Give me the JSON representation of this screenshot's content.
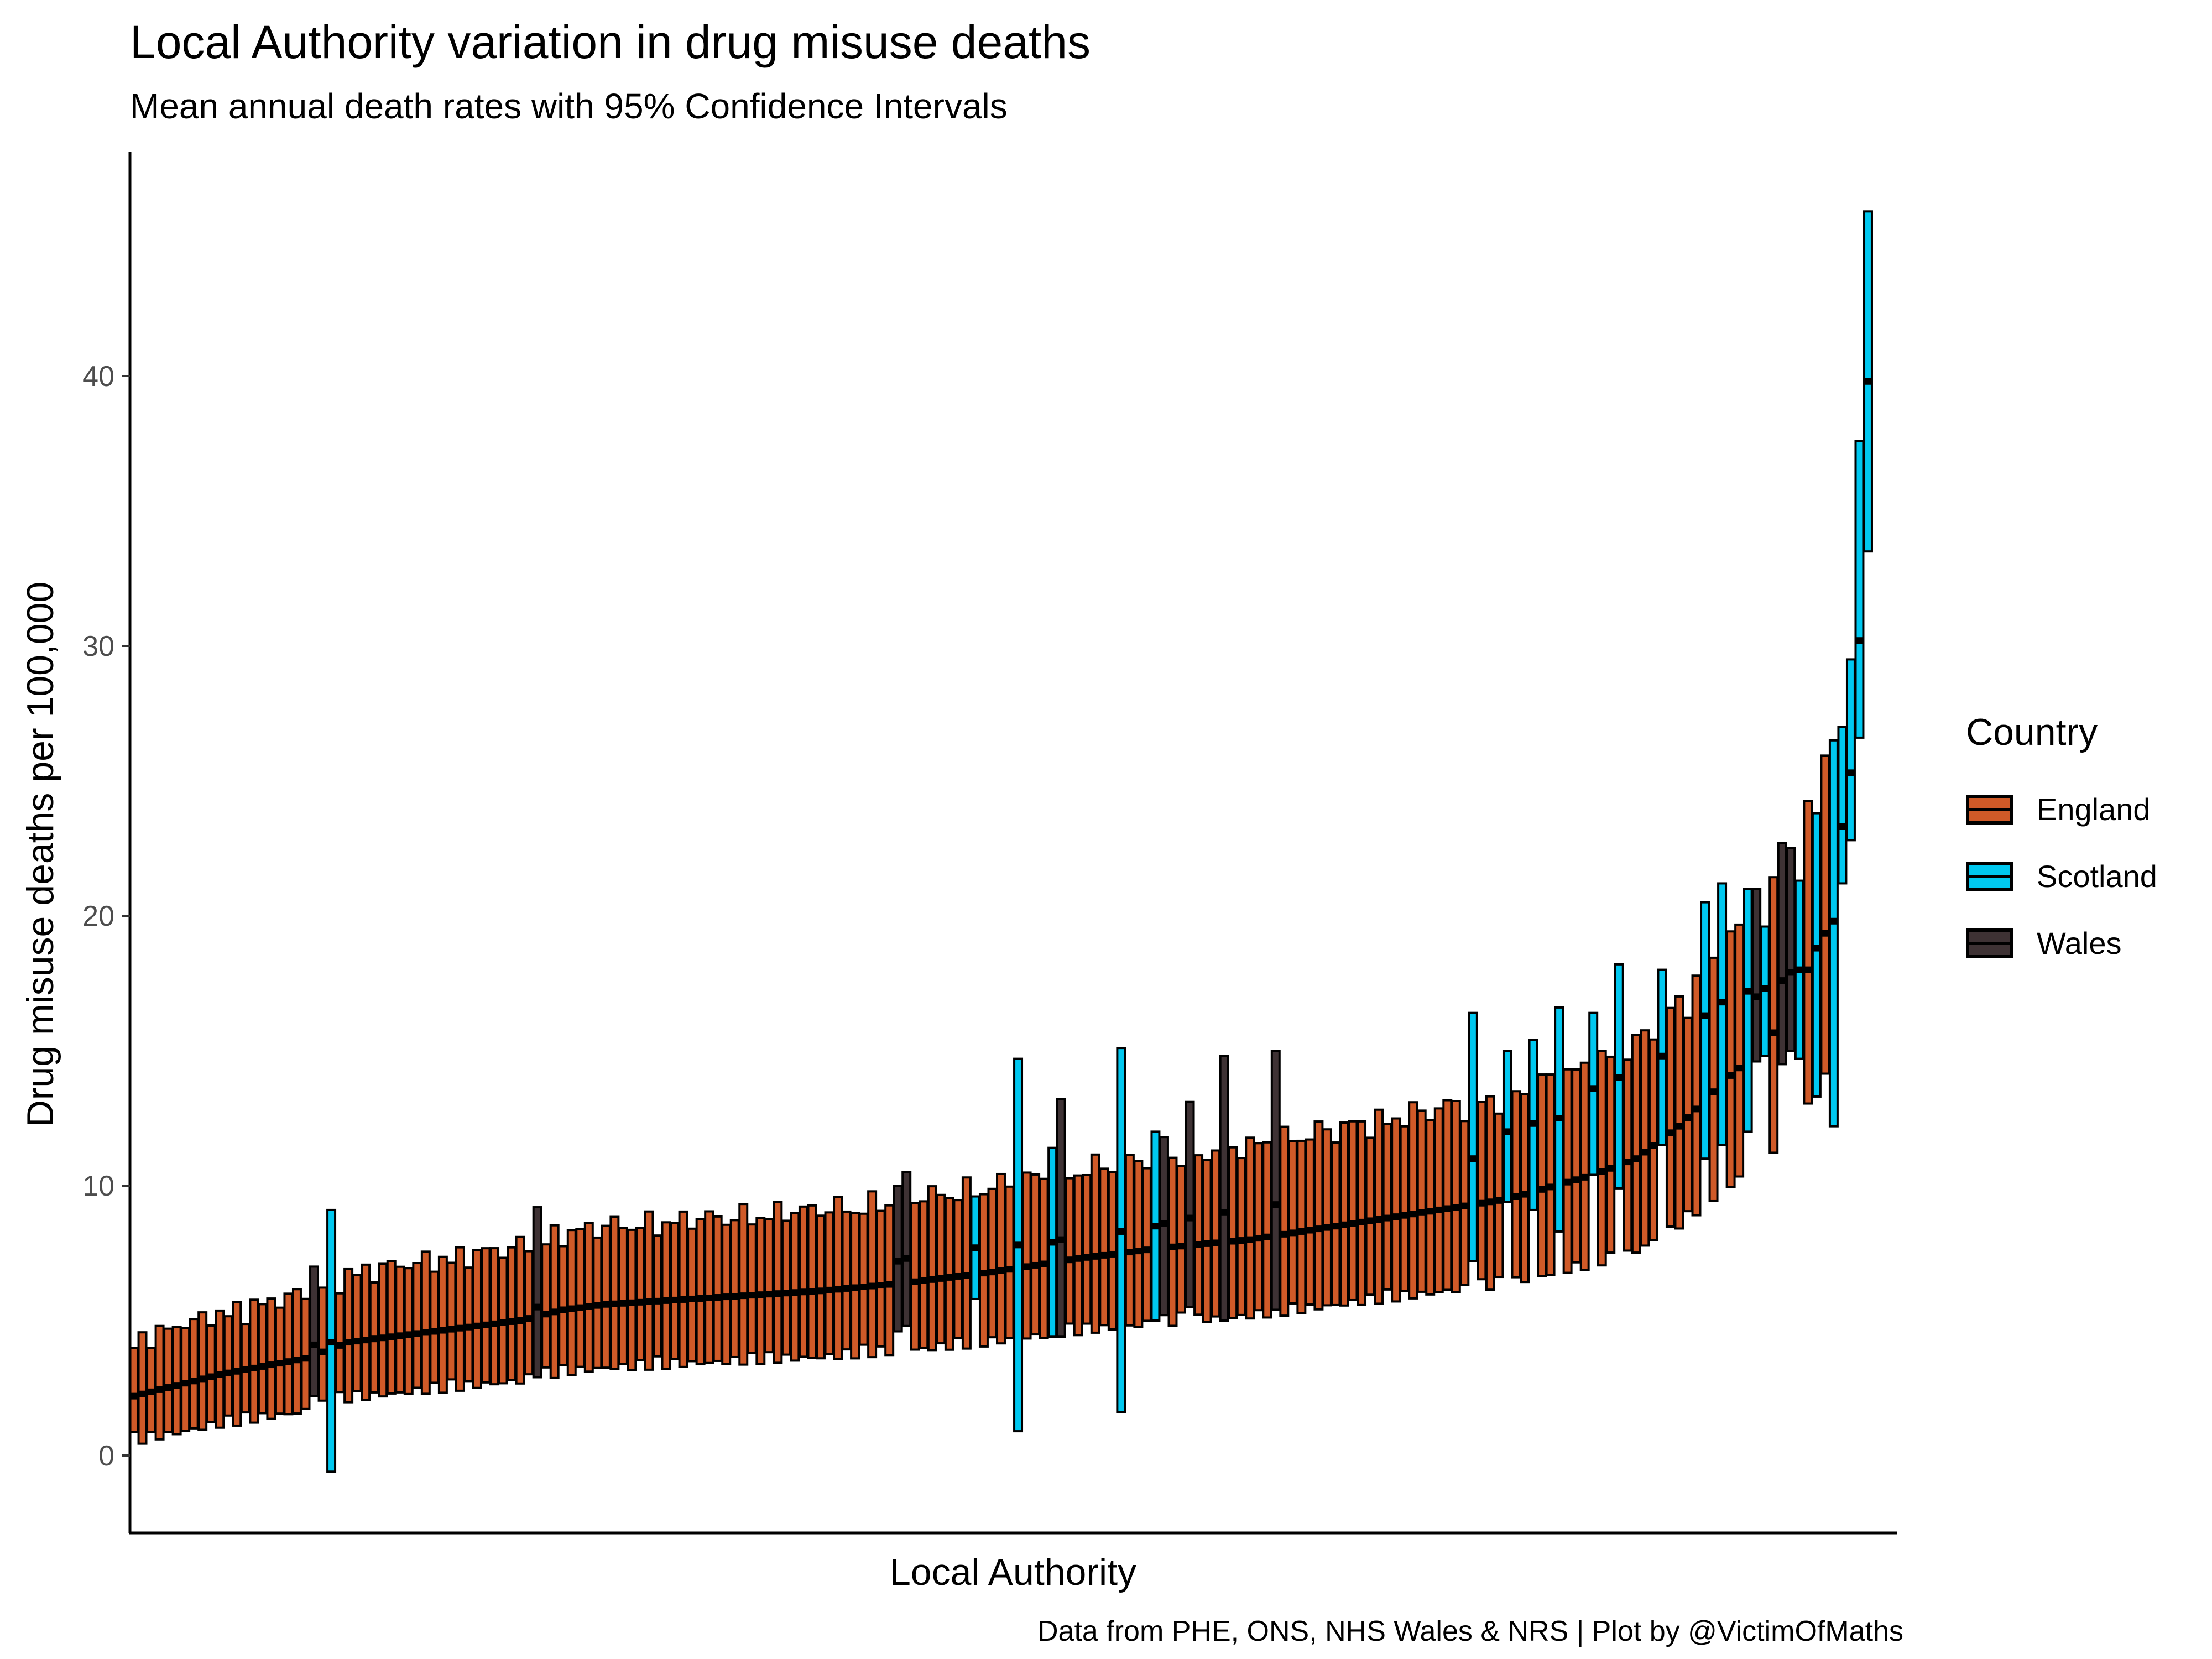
{
  "chart_data": {
    "type": "crossbar",
    "title": "Local Authority variation in drug misuse deaths",
    "subtitle": "Mean annual death rates with 95% Confidence Intervals",
    "xlabel": "Local Authority",
    "ylabel": "Drug misuse deaths per 100,000",
    "caption": "Data from PHE, ONS, NHS Wales & NRS | Plot by @VictimOfMaths",
    "ylim": [
      -2.8,
      48.5
    ],
    "yticks": [
      0,
      10,
      20,
      30,
      40
    ],
    "grid": false,
    "legend": {
      "title": "Country",
      "position": "right",
      "entries": [
        {
          "name": "England",
          "color": "#D05A28"
        },
        {
          "name": "Scotland",
          "color": "#00C8F0"
        },
        {
          "name": "Wales",
          "color": "#3E3234"
        }
      ]
    },
    "n_authorities": 203,
    "mean_curve": [
      [
        0,
        2.2
      ],
      [
        10,
        3.0
      ],
      [
        20,
        3.6
      ],
      [
        25,
        4.2
      ],
      [
        35,
        4.6
      ],
      [
        45,
        5.0
      ],
      [
        50,
        5.4
      ],
      [
        55,
        5.6
      ],
      [
        70,
        5.9
      ],
      [
        80,
        6.1
      ],
      [
        90,
        6.4
      ],
      [
        100,
        6.8
      ],
      [
        110,
        7.3
      ],
      [
        120,
        7.7
      ],
      [
        130,
        8.0
      ],
      [
        140,
        8.5
      ],
      [
        150,
        9.0
      ],
      [
        160,
        9.5
      ],
      [
        170,
        10.4
      ],
      [
        175,
        11.0
      ],
      [
        180,
        12.2
      ],
      [
        185,
        13.8
      ],
      [
        190,
        15.2
      ],
      [
        193,
        16.6
      ],
      [
        196,
        18.7
      ],
      [
        198,
        20.0
      ],
      [
        199,
        23.3
      ],
      [
        200,
        25.3
      ],
      [
        201,
        30.2
      ],
      [
        202,
        39.8
      ]
    ],
    "scotland_points": [
      {
        "i": 23,
        "mean": 4.2,
        "lower": -0.6,
        "upper": 9.1
      },
      {
        "i": 98,
        "mean": 7.7,
        "lower": 5.8,
        "upper": 9.6
      },
      {
        "i": 103,
        "mean": 7.8,
        "lower": 0.9,
        "upper": 14.7
      },
      {
        "i": 107,
        "mean": 7.9,
        "lower": 4.4,
        "upper": 11.4
      },
      {
        "i": 115,
        "mean": 8.3,
        "lower": 1.6,
        "upper": 15.1
      },
      {
        "i": 119,
        "mean": 8.5,
        "lower": 5.0,
        "upper": 12.0
      },
      {
        "i": 156,
        "mean": 11.0,
        "lower": 7.2,
        "upper": 16.4
      },
      {
        "i": 160,
        "mean": 12.0,
        "lower": 9.4,
        "upper": 15.0
      },
      {
        "i": 163,
        "mean": 12.3,
        "lower": 9.1,
        "upper": 15.4
      },
      {
        "i": 166,
        "mean": 12.5,
        "lower": 8.3,
        "upper": 16.6
      },
      {
        "i": 170,
        "mean": 13.6,
        "lower": 10.4,
        "upper": 16.4
      },
      {
        "i": 173,
        "mean": 14.0,
        "lower": 9.9,
        "upper": 18.2
      },
      {
        "i": 178,
        "mean": 14.8,
        "lower": 11.5,
        "upper": 18.0
      },
      {
        "i": 183,
        "mean": 16.3,
        "lower": 11.0,
        "upper": 20.5
      },
      {
        "i": 185,
        "mean": 16.8,
        "lower": 11.5,
        "upper": 21.2
      },
      {
        "i": 188,
        "mean": 17.2,
        "lower": 12.0,
        "upper": 21.0
      },
      {
        "i": 190,
        "mean": 17.3,
        "lower": 14.8,
        "upper": 19.6
      },
      {
        "i": 194,
        "mean": 18.0,
        "lower": 14.7,
        "upper": 21.3
      },
      {
        "i": 196,
        "mean": 18.8,
        "lower": 13.3,
        "upper": 23.8
      },
      {
        "i": 198,
        "mean": 19.8,
        "lower": 12.2,
        "upper": 26.5
      },
      {
        "i": 199,
        "mean": 23.3,
        "lower": 21.2,
        "upper": 27.0
      },
      {
        "i": 200,
        "mean": 25.3,
        "lower": 22.8,
        "upper": 29.5
      },
      {
        "i": 201,
        "mean": 30.2,
        "lower": 26.6,
        "upper": 37.6
      },
      {
        "i": 202,
        "mean": 39.8,
        "lower": 33.5,
        "upper": 46.1
      }
    ],
    "wales_points": [
      {
        "i": 21,
        "mean": 4.1,
        "lower": 2.2,
        "upper": 7.0
      },
      {
        "i": 47,
        "mean": 5.5,
        "lower": 2.9,
        "upper": 9.2
      },
      {
        "i": 89,
        "mean": 7.2,
        "lower": 4.6,
        "upper": 10.0
      },
      {
        "i": 90,
        "mean": 7.3,
        "lower": 4.8,
        "upper": 10.5
      },
      {
        "i": 108,
        "mean": 8.0,
        "lower": 4.4,
        "upper": 13.2
      },
      {
        "i": 120,
        "mean": 8.6,
        "lower": 5.2,
        "upper": 11.8
      },
      {
        "i": 123,
        "mean": 8.8,
        "lower": 5.5,
        "upper": 13.1
      },
      {
        "i": 127,
        "mean": 9.0,
        "lower": 5.0,
        "upper": 14.8
      },
      {
        "i": 133,
        "mean": 9.3,
        "lower": 5.4,
        "upper": 15.0
      },
      {
        "i": 189,
        "mean": 17.0,
        "lower": 14.6,
        "upper": 21.0
      },
      {
        "i": 192,
        "mean": 17.6,
        "lower": 14.5,
        "upper": 22.7
      },
      {
        "i": 193,
        "mean": 17.9,
        "lower": 15.0,
        "upper": 22.5
      }
    ],
    "default_series": "England"
  }
}
